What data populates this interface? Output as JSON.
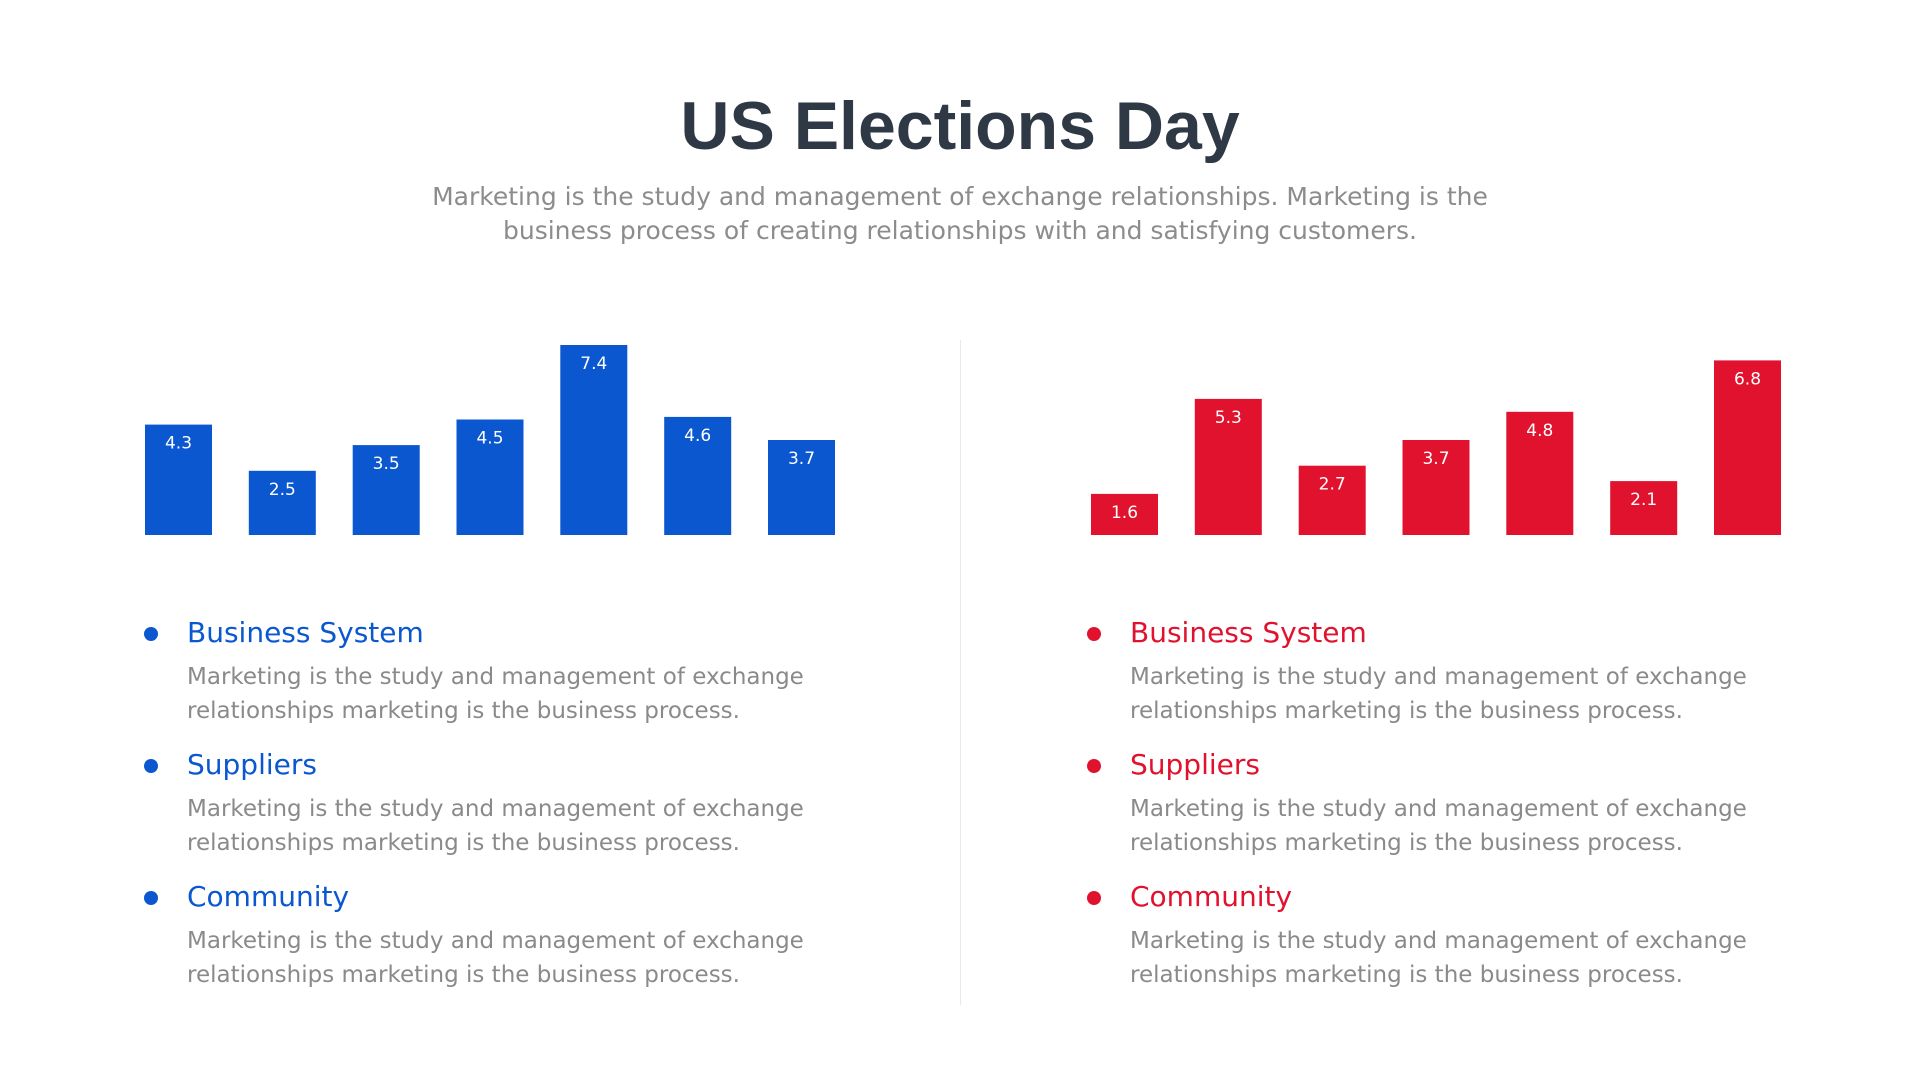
{
  "header": {
    "title": "US Elections Day",
    "subtitle": "Marketing is the study and management of exchange relationships. Marketing is the business process of creating relationships with and satisfying customers."
  },
  "colors": {
    "blue": "#0b57d0",
    "red": "#e1122e",
    "title": "#2f3945",
    "text_gray": "#8a8a8a"
  },
  "chart_data": [
    {
      "type": "bar",
      "categories": [
        "",
        "",
        "",
        "",
        "",
        "",
        ""
      ],
      "values": [
        4.3,
        2.5,
        3.5,
        4.5,
        7.4,
        4.6,
        3.7
      ],
      "color": "#0b57d0",
      "ylim": [
        0,
        7.4
      ],
      "grid": false,
      "data_labels": true,
      "title": "",
      "xlabel": "",
      "ylabel": ""
    },
    {
      "type": "bar",
      "categories": [
        "",
        "",
        "",
        "",
        "",
        "",
        ""
      ],
      "values": [
        1.6,
        5.3,
        2.7,
        3.7,
        4.8,
        2.1,
        6.8
      ],
      "color": "#e1122e",
      "ylim": [
        0,
        7.4
      ],
      "grid": false,
      "data_labels": true,
      "title": "",
      "xlabel": "",
      "ylabel": ""
    }
  ],
  "left_list": {
    "items": [
      {
        "title": "Business System",
        "desc": "Marketing is the study and management of exchange relationships marketing is the business process."
      },
      {
        "title": "Suppliers",
        "desc": "Marketing is the study and management of exchange relationships marketing is the business process."
      },
      {
        "title": "Community",
        "desc": "Marketing is the study and management of exchange relationships marketing is the business process."
      }
    ]
  },
  "right_list": {
    "items": [
      {
        "title": "Business System",
        "desc": "Marketing is the study and management of exchange relationships marketing is the business process."
      },
      {
        "title": "Suppliers",
        "desc": "Marketing is the study and management of exchange relationships marketing is the business process."
      },
      {
        "title": "Community",
        "desc": "Marketing is the study and management of exchange relationships marketing is the business process."
      }
    ]
  }
}
